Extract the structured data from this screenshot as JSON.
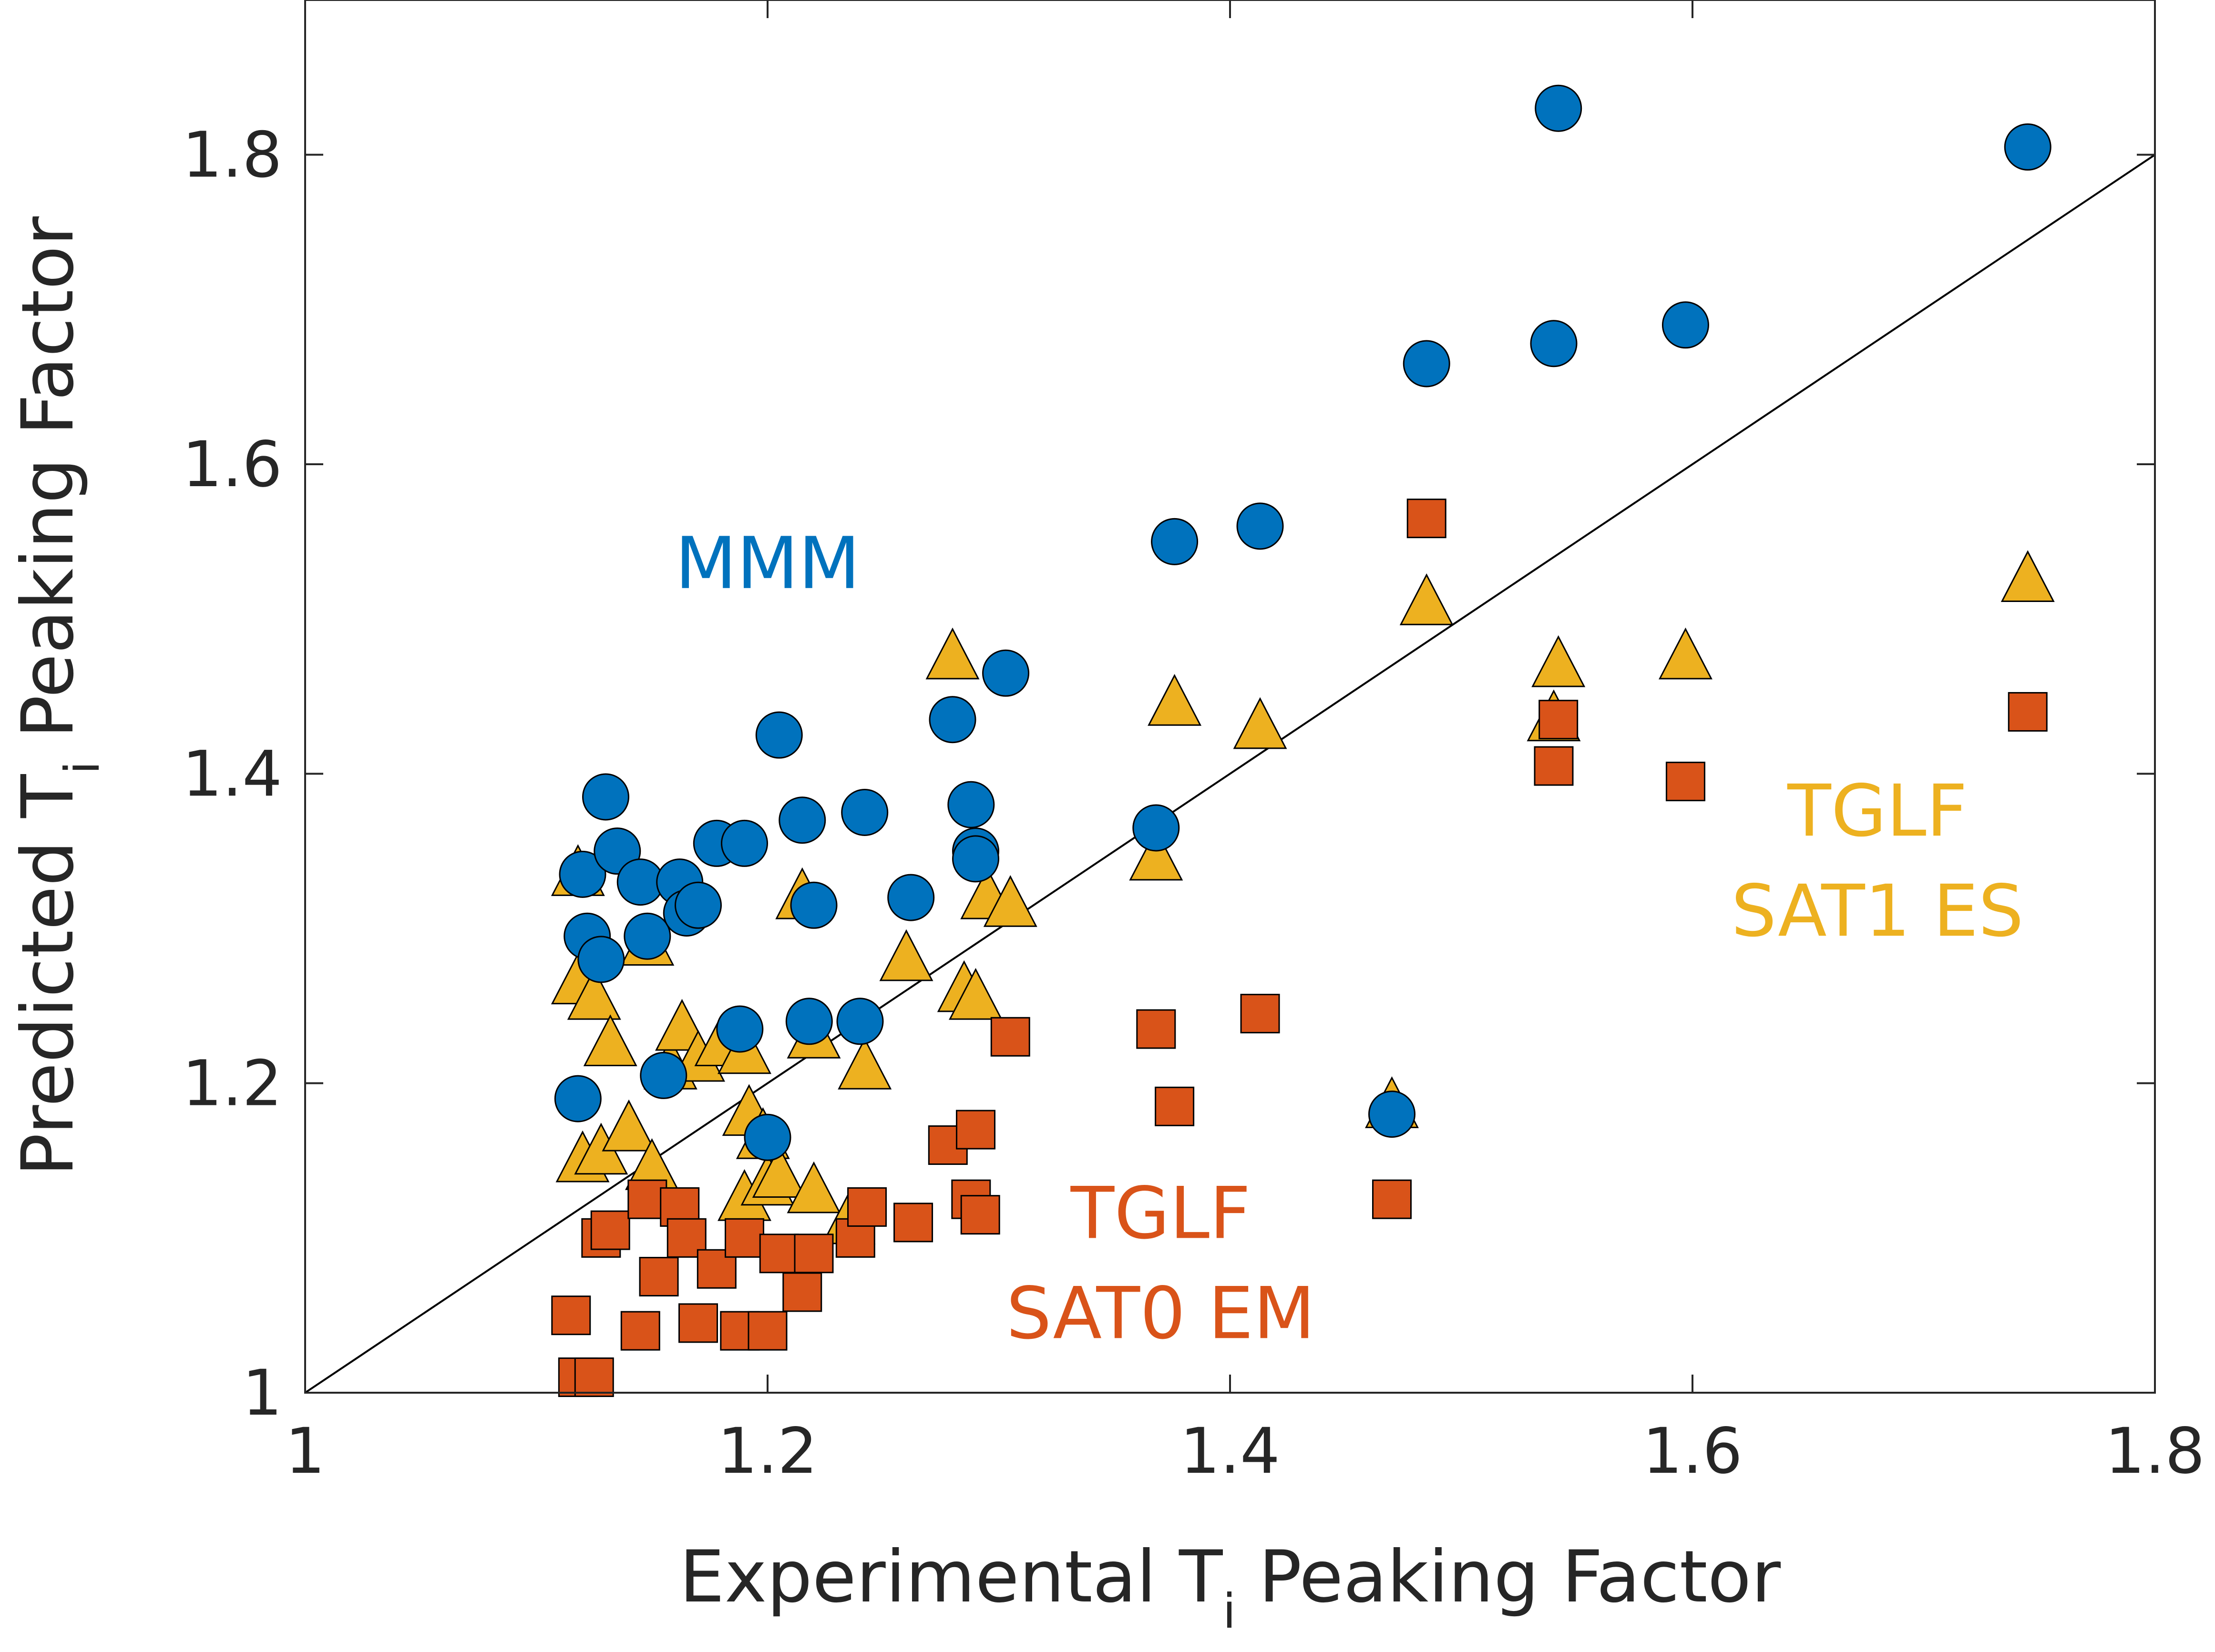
{
  "chart_data": {
    "type": "scatter",
    "xlabel": "Experimental T",
    "xlabel_subscript": "i",
    "xlabel_suffix": " Peaking Factor",
    "ylabel": "Predicted T",
    "ylabel_subscript": "i",
    "ylabel_suffix": " Peaking Factor",
    "xlim": [
      1,
      1.8
    ],
    "ylim": [
      1,
      1.9
    ],
    "xticks": [
      1,
      1.2,
      1.4,
      1.6,
      1.8
    ],
    "xtick_labels": [
      "1",
      "1.2",
      "1.4",
      "1.6",
      "1.8"
    ],
    "yticks": [
      1,
      1.2,
      1.4,
      1.6,
      1.8
    ],
    "ytick_labels": [
      "1",
      "1.2",
      "1.4",
      "1.6",
      "1.8"
    ],
    "grid": false,
    "reference_line": {
      "x": [
        1,
        1.8
      ],
      "y": [
        1,
        1.8
      ]
    },
    "annotations": [
      {
        "lines": [
          "MMM"
        ],
        "color": "#0072BD",
        "x": 1.2,
        "y": 1.52
      },
      {
        "lines": [
          "TGLF",
          "SAT1 ES"
        ],
        "color": "#EDB120",
        "x": 1.68,
        "y": 1.36
      },
      {
        "lines": [
          "TGLF",
          "SAT0 EM"
        ],
        "color": "#D95319",
        "x": 1.37,
        "y": 1.1
      }
    ],
    "series": [
      {
        "name": "MMM",
        "marker": "circle",
        "color": "#0072BD",
        "points": [
          [
            1.12,
            1.335
          ],
          [
            1.13,
            1.385
          ],
          [
            1.122,
            1.295
          ],
          [
            1.128,
            1.28
          ],
          [
            1.118,
            1.19
          ],
          [
            1.135,
            1.35
          ],
          [
            1.145,
            1.33
          ],
          [
            1.148,
            1.295
          ],
          [
            1.155,
            1.205
          ],
          [
            1.162,
            1.33
          ],
          [
            1.165,
            1.31
          ],
          [
            1.17,
            1.315
          ],
          [
            1.178,
            1.355
          ],
          [
            1.19,
            1.355
          ],
          [
            1.188,
            1.235
          ],
          [
            1.2,
            1.165
          ],
          [
            1.205,
            1.425
          ],
          [
            1.215,
            1.37
          ],
          [
            1.22,
            1.315
          ],
          [
            1.218,
            1.24
          ],
          [
            1.242,
            1.375
          ],
          [
            1.24,
            1.24
          ],
          [
            1.262,
            1.32
          ],
          [
            1.28,
            1.435
          ],
          [
            1.288,
            1.38
          ],
          [
            1.29,
            1.35
          ],
          [
            1.29,
            1.345
          ],
          [
            1.303,
            1.465
          ],
          [
            1.368,
            1.365
          ],
          [
            1.376,
            1.55
          ],
          [
            1.413,
            1.56
          ],
          [
            1.47,
            1.18
          ],
          [
            1.485,
            1.665
          ],
          [
            1.54,
            1.678
          ],
          [
            1.542,
            1.83
          ],
          [
            1.597,
            1.69
          ],
          [
            1.745,
            1.805
          ]
        ]
      },
      {
        "name": "TGLF SAT1 ES",
        "marker": "triangle",
        "color": "#EDB120",
        "points": [
          [
            1.118,
            1.335
          ],
          [
            1.118,
            1.265
          ],
          [
            1.125,
            1.255
          ],
          [
            1.132,
            1.225
          ],
          [
            1.12,
            1.15
          ],
          [
            1.128,
            1.155
          ],
          [
            1.14,
            1.17
          ],
          [
            1.15,
            1.145
          ],
          [
            1.148,
            1.29
          ],
          [
            1.158,
            1.21
          ],
          [
            1.163,
            1.235
          ],
          [
            1.17,
            1.215
          ],
          [
            1.18,
            1.225
          ],
          [
            1.19,
            1.22
          ],
          [
            1.192,
            1.18
          ],
          [
            1.198,
            1.165
          ],
          [
            1.19,
            1.125
          ],
          [
            1.2,
            1.135
          ],
          [
            1.205,
            1.14
          ],
          [
            1.215,
            1.32
          ],
          [
            1.22,
            1.23
          ],
          [
            1.22,
            1.13
          ],
          [
            1.235,
            1.11
          ],
          [
            1.242,
            1.21
          ],
          [
            1.26,
            1.28
          ],
          [
            1.28,
            1.475
          ],
          [
            1.285,
            1.26
          ],
          [
            1.29,
            1.255
          ],
          [
            1.295,
            1.32
          ],
          [
            1.305,
            1.315
          ],
          [
            1.368,
            1.345
          ],
          [
            1.376,
            1.445
          ],
          [
            1.413,
            1.43
          ],
          [
            1.47,
            1.185
          ],
          [
            1.485,
            1.51
          ],
          [
            1.54,
            1.435
          ],
          [
            1.542,
            1.47
          ],
          [
            1.597,
            1.475
          ],
          [
            1.745,
            1.525
          ]
        ]
      },
      {
        "name": "TGLF SAT0 EM",
        "marker": "square",
        "color": "#D95319",
        "points": [
          [
            1.115,
            1.05
          ],
          [
            1.118,
            1.01
          ],
          [
            1.125,
            1.01
          ],
          [
            1.128,
            1.1
          ],
          [
            1.132,
            1.105
          ],
          [
            1.145,
            1.04
          ],
          [
            1.148,
            1.125
          ],
          [
            1.153,
            1.075
          ],
          [
            1.162,
            1.12
          ],
          [
            1.165,
            1.1
          ],
          [
            1.17,
            1.045
          ],
          [
            1.178,
            1.08
          ],
          [
            1.188,
            1.04
          ],
          [
            1.19,
            1.1
          ],
          [
            1.2,
            1.04
          ],
          [
            1.205,
            1.09
          ],
          [
            1.215,
            1.065
          ],
          [
            1.22,
            1.09
          ],
          [
            1.238,
            1.1
          ],
          [
            1.243,
            1.12
          ],
          [
            1.263,
            1.11
          ],
          [
            1.278,
            1.16
          ],
          [
            1.288,
            1.125
          ],
          [
            1.29,
            1.17
          ],
          [
            1.292,
            1.115
          ],
          [
            1.305,
            1.23
          ],
          [
            1.368,
            1.235
          ],
          [
            1.376,
            1.185
          ],
          [
            1.413,
            1.245
          ],
          [
            1.47,
            1.125
          ],
          [
            1.485,
            1.565
          ],
          [
            1.54,
            1.405
          ],
          [
            1.542,
            1.435
          ],
          [
            1.597,
            1.395
          ],
          [
            1.745,
            1.44
          ]
        ]
      }
    ]
  }
}
